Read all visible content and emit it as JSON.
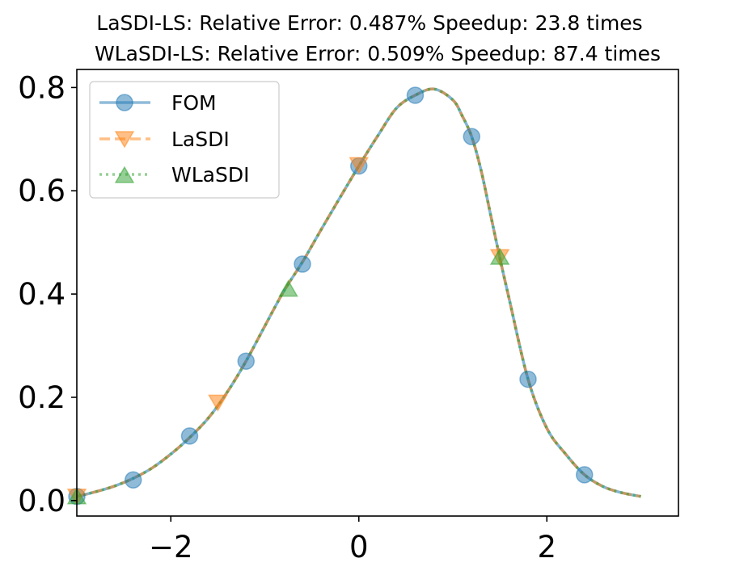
{
  "chart_data": {
    "type": "line",
    "title": [
      "LaSDI-LS: Relative Error: 0.487%  Speedup: 23.8 times",
      "WLaSDI-LS: Relative Error: 0.509%  Speedup: 87.4 times"
    ],
    "xlabel": "",
    "ylabel": "",
    "xlim": [
      -3,
      3.4
    ],
    "ylim": [
      -0.03,
      0.835
    ],
    "xticks": [
      -2,
      0,
      2
    ],
    "xtick_labels": [
      "−2",
      "0",
      "2"
    ],
    "yticks": [
      0.0,
      0.2,
      0.4,
      0.6,
      0.8
    ],
    "ytick_labels": [
      "0.0",
      "0.2",
      "0.4",
      "0.6",
      "0.8"
    ],
    "grid": false,
    "legend_position": "top-left",
    "x": [
      -3.0,
      -2.8,
      -2.6,
      -2.4,
      -2.2,
      -2.0,
      -1.8,
      -1.6,
      -1.4,
      -1.2,
      -1.0,
      -0.8,
      -0.6,
      -0.4,
      -0.2,
      0.0,
      0.2,
      0.4,
      0.6,
      0.8,
      1.0,
      1.1,
      1.2,
      1.3,
      1.4,
      1.5,
      1.6,
      1.8,
      2.0,
      2.2,
      2.4,
      2.6,
      2.8,
      3.0
    ],
    "series": [
      {
        "name": "FOM",
        "color": "#1f77b4",
        "line_style": "solid",
        "marker": "circle",
        "values": [
          0.008,
          0.017,
          0.028,
          0.043,
          0.063,
          0.09,
          0.122,
          0.16,
          0.21,
          0.27,
          0.338,
          0.405,
          0.462,
          0.525,
          0.587,
          0.648,
          0.706,
          0.76,
          0.785,
          0.797,
          0.776,
          0.745,
          0.705,
          0.64,
          0.555,
          0.47,
          0.39,
          0.235,
          0.14,
          0.09,
          0.05,
          0.027,
          0.015,
          0.008
        ],
        "marker_points": [
          {
            "x": -3.0,
            "y": 0.008
          },
          {
            "x": -2.4,
            "y": 0.04
          },
          {
            "x": -1.8,
            "y": 0.125
          },
          {
            "x": -1.2,
            "y": 0.27
          },
          {
            "x": -0.6,
            "y": 0.458
          },
          {
            "x": 0.0,
            "y": 0.648
          },
          {
            "x": 0.6,
            "y": 0.785
          },
          {
            "x": 1.2,
            "y": 0.705
          },
          {
            "x": 1.8,
            "y": 0.235
          },
          {
            "x": 2.4,
            "y": 0.05
          }
        ]
      },
      {
        "name": "LaSDI",
        "color": "#ff7f0e",
        "line_style": "dashed",
        "marker": "triangle-down",
        "values": [
          0.008,
          0.017,
          0.028,
          0.043,
          0.063,
          0.09,
          0.122,
          0.16,
          0.21,
          0.27,
          0.338,
          0.405,
          0.462,
          0.525,
          0.587,
          0.648,
          0.706,
          0.76,
          0.785,
          0.797,
          0.776,
          0.745,
          0.705,
          0.64,
          0.555,
          0.47,
          0.39,
          0.235,
          0.14,
          0.09,
          0.05,
          0.027,
          0.015,
          0.008
        ],
        "marker_points": [
          {
            "x": -3.0,
            "y": 0.008
          },
          {
            "x": -1.5,
            "y": 0.19
          },
          {
            "x": 0.0,
            "y": 0.65
          },
          {
            "x": 1.5,
            "y": 0.472
          }
        ]
      },
      {
        "name": "WLaSDI",
        "color": "#2ca02c",
        "line_style": "dotted",
        "marker": "triangle-up",
        "values": [
          0.008,
          0.017,
          0.028,
          0.043,
          0.063,
          0.09,
          0.122,
          0.16,
          0.21,
          0.27,
          0.338,
          0.405,
          0.462,
          0.525,
          0.587,
          0.648,
          0.706,
          0.76,
          0.785,
          0.797,
          0.776,
          0.745,
          0.705,
          0.64,
          0.555,
          0.47,
          0.39,
          0.235,
          0.14,
          0.09,
          0.05,
          0.027,
          0.015,
          0.008
        ],
        "marker_points": [
          {
            "x": -3.0,
            "y": 0.008
          },
          {
            "x": -0.75,
            "y": 0.41
          },
          {
            "x": 1.5,
            "y": 0.472
          }
        ]
      }
    ]
  }
}
